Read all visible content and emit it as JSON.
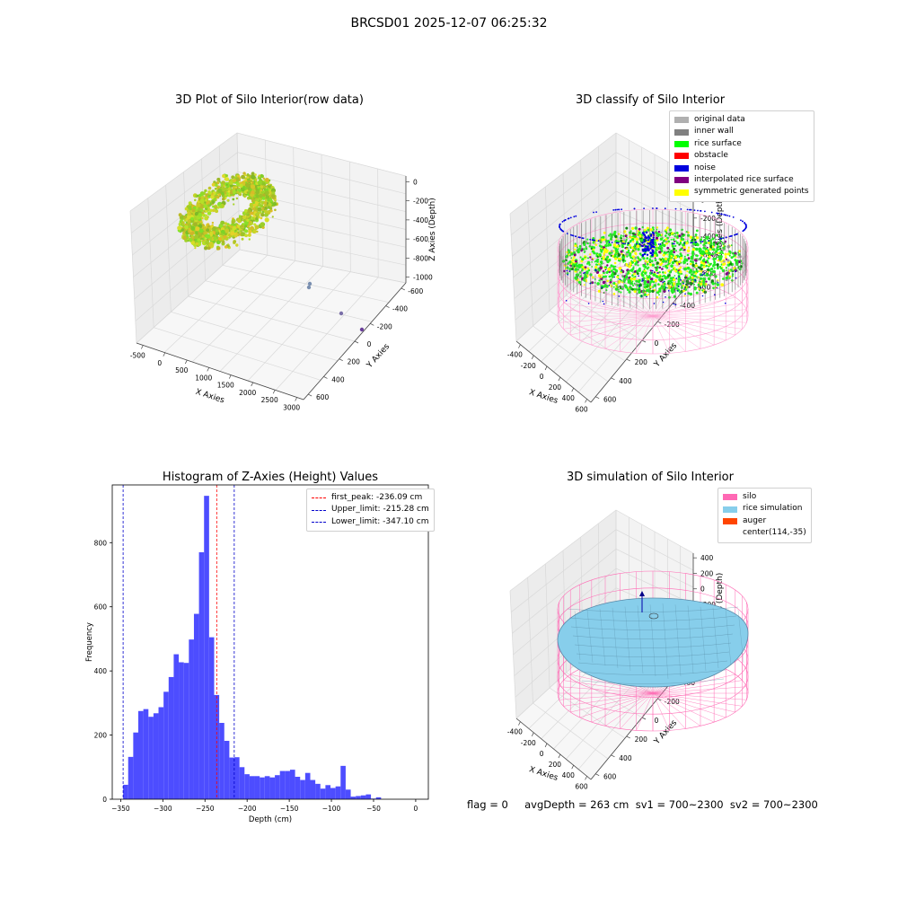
{
  "suptitle": "BRCSD01 2025-12-07 06:25:32",
  "footer": "flag = 0     avgDepth = 263 cm  sv1 = 700~2300  sv2 = 700~2300",
  "colors": {
    "hist_bar": "#4d4dff",
    "first_peak": "#ff0000",
    "limits": "#0000cc",
    "silo": "#ff69b4",
    "rice_simulation": "#87ceeb",
    "auger": "#ff4500"
  },
  "panels": {
    "raw": {
      "title": "3D Plot of Silo Interior(row data)",
      "xlabel": "X Axies",
      "ylabel": "Y Axies",
      "zlabel": "Z Axies (Depth)",
      "xticks": [
        "-500",
        "0",
        "500",
        "1000",
        "1500",
        "2000",
        "2500",
        "3000"
      ],
      "yticks": [
        "-600",
        "-400",
        "-200",
        "0",
        "200",
        "400",
        "600"
      ],
      "zticks": [
        "0",
        "-200",
        "-400",
        "-600",
        "-800",
        "-1000"
      ]
    },
    "classify": {
      "title": "3D classify of Silo Interior",
      "xlabel": "X Axies",
      "ylabel": "Y Axies",
      "zlabel": "Z Axies (Depth)",
      "xticks": [
        "-400",
        "-200",
        "0",
        "200",
        "400",
        "600"
      ],
      "yticks": [
        "-600",
        "-400",
        "-200",
        "0",
        "200",
        "400",
        "600"
      ],
      "zticks": [
        "200",
        "0",
        "-200",
        "-400",
        "-600",
        "-800"
      ],
      "legend": [
        {
          "label": "original data",
          "color": "#b0b0b0"
        },
        {
          "label": "inner wall",
          "color": "#808080"
        },
        {
          "label": "rice surface",
          "color": "#00ff00"
        },
        {
          "label": "obstacle",
          "color": "#ff0000"
        },
        {
          "label": "noise",
          "color": "#0000dd"
        },
        {
          "label": "interpolated rice surface",
          "color": "#800080"
        },
        {
          "label": "symmetric generated points",
          "color": "#ffff00"
        }
      ]
    },
    "simulation": {
      "title": "3D simulation of Silo Interior",
      "xlabel": "X Axies",
      "ylabel": "Y Axies",
      "zlabel": "Z Axies (Depth)",
      "xticks": [
        "-400",
        "-200",
        "0",
        "200",
        "400",
        "600"
      ],
      "yticks": [
        "-600",
        "-400",
        "-200",
        "0",
        "200",
        "400",
        "600"
      ],
      "zticks": [
        "400",
        "200",
        "0",
        "-200",
        "-400",
        "-600",
        "-800"
      ],
      "legend": [
        {
          "label": "silo",
          "color": "#ff69b4"
        },
        {
          "label": "rice simulation",
          "color": "#87ceeb"
        },
        {
          "label": "auger",
          "color": "#ff4500"
        },
        {
          "label": "center(114,-35)",
          "color": ""
        }
      ]
    }
  },
  "chart_data": [
    {
      "type": "histogram",
      "title": "Histogram of Z-Axies (Height) Values",
      "xlabel": "Depth (cm)",
      "ylabel": "Frequency",
      "xlim": [
        -360,
        15
      ],
      "ylim": [
        0,
        980
      ],
      "xticks": [
        -350,
        -300,
        -250,
        -200,
        -150,
        -100,
        -50,
        0
      ],
      "yticks": [
        0,
        200,
        400,
        600,
        800
      ],
      "bin_start": -347.1,
      "bin_width": 6.0,
      "counts": [
        45,
        132,
        208,
        275,
        281,
        257,
        268,
        287,
        335,
        381,
        452,
        427,
        425,
        498,
        578,
        770,
        946,
        505,
        325,
        238,
        182,
        130,
        131,
        100,
        78,
        72,
        72,
        68,
        72,
        68,
        75,
        88,
        88,
        92,
        70,
        60,
        82,
        60,
        48,
        33,
        44,
        35,
        40,
        104,
        30,
        8,
        10,
        12,
        15,
        2,
        6
      ],
      "vlines": [
        {
          "label": "first_peak: -236.09 cm",
          "x": -236.09,
          "color": "#ff0000"
        },
        {
          "label": "Upper_limit: -215.28 cm",
          "x": -215.28,
          "color": "#0000cc"
        },
        {
          "label": "Lower_limit: -347.10 cm",
          "x": -347.1,
          "color": "#0000cc"
        }
      ],
      "legend_position": "upper-right"
    }
  ]
}
